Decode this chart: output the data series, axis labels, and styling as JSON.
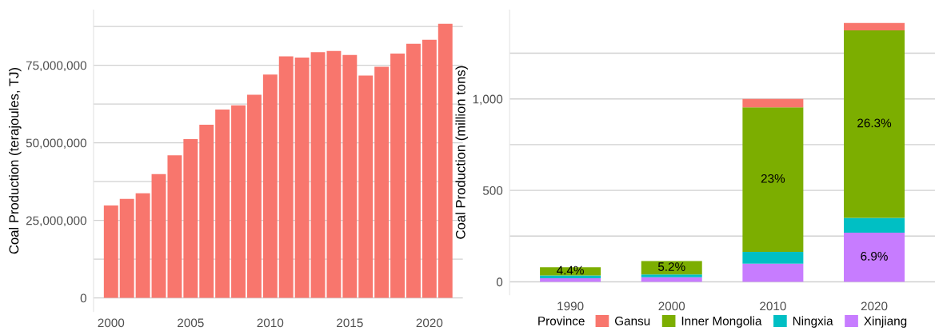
{
  "chart_data": [
    {
      "type": "bar",
      "ylabel": "Coal Production (terajoules, TJ)",
      "x": [
        2000,
        2001,
        2002,
        2003,
        2004,
        2005,
        2006,
        2007,
        2008,
        2009,
        2010,
        2011,
        2012,
        2013,
        2014,
        2015,
        2016,
        2017,
        2018,
        2019,
        2020,
        2021
      ],
      "values": [
        29800000,
        31900000,
        33700000,
        39900000,
        46000000,
        51200000,
        55800000,
        60700000,
        62100000,
        65500000,
        72000000,
        77900000,
        77500000,
        79200000,
        79600000,
        78300000,
        71700000,
        74500000,
        78800000,
        81900000,
        83200000,
        88400000
      ],
      "color": "#f8766d",
      "xlim": [
        1998.9,
        2022.1
      ],
      "xticks": [
        2000,
        2005,
        2010,
        2015,
        2020
      ],
      "ylim": [
        -4400000,
        92800000
      ],
      "yticks": [
        {
          "value": 0,
          "label": "0"
        },
        {
          "value": 12500000,
          "label": null
        },
        {
          "value": 25000000,
          "label": "25,000,000"
        },
        {
          "value": 37500000,
          "label": null
        },
        {
          "value": 50000000,
          "label": "50,000,000"
        },
        {
          "value": 62500000,
          "label": null
        },
        {
          "value": 75000000,
          "label": "75,000,000"
        },
        {
          "value": 87500000,
          "label": null
        }
      ],
      "grid": "y"
    },
    {
      "type": "bar",
      "stacked": true,
      "ylabel": "Coal Production (million tons)",
      "legend_title": "Province",
      "legend": "bottom",
      "categories": [
        "1990",
        "2000",
        "2010",
        "2020"
      ],
      "series": [
        {
          "name": "Xinjiang",
          "color": "#c77cff",
          "values": [
            20,
            25,
            99,
            269
          ]
        },
        {
          "name": "Ningxia",
          "color": "#00bfc4",
          "values": [
            15,
            15,
            65,
            81
          ]
        },
        {
          "name": "Inner Mongolia",
          "color": "#7cae00",
          "values": [
            45,
            74,
            790,
            1025
          ]
        },
        {
          "name": "Gansu",
          "color": "#f8766d",
          "values": [
            null,
            null,
            46,
            40
          ]
        }
      ],
      "annotations": [
        {
          "text": "4.4%",
          "x": "1990",
          "y": 80
        },
        {
          "text": "5.2%",
          "x": "2000",
          "y": 114
        },
        "23%",
        "26.3%",
        {
          "text": "6.9%",
          "x": "2020",
          "y": 269
        }
      ],
      "ylim": [
        -71,
        1486
      ],
      "yticks": [
        {
          "value": 0,
          "label": "0"
        },
        {
          "value": 250,
          "label": null
        },
        {
          "value": 500,
          "label": "500"
        },
        {
          "value": 750,
          "label": null
        },
        {
          "value": 1000,
          "label": "1,000"
        },
        {
          "value": 1250,
          "label": null
        }
      ],
      "grid": "y"
    }
  ]
}
